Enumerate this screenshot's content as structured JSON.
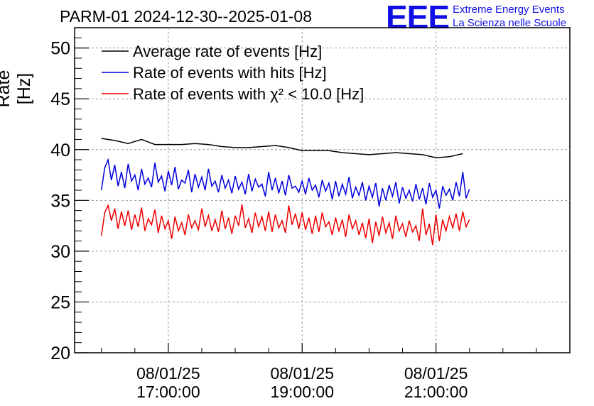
{
  "header": {
    "title": "PARM-01 2024-12-30--2025-01-08",
    "logo": "EEE",
    "logo_line1": "Extreme Energy Events",
    "logo_line2": "La Scienza nelle Scuole"
  },
  "chart_data": {
    "type": "line",
    "title": "PARM-01 2024-12-30--2025-01-08",
    "ylabel": "Rate [Hz]",
    "ylim": [
      20,
      52
    ],
    "yticks": [
      20,
      25,
      30,
      35,
      40,
      45,
      50
    ],
    "ytick_labels": [
      "20",
      "25",
      "30",
      "35",
      "40",
      "45",
      "50"
    ],
    "xlim": [
      15.6,
      23.0
    ],
    "xticks": [
      17,
      19,
      21
    ],
    "xtick_labels": [
      {
        "date": "08/01/25",
        "time": "17:00:00"
      },
      {
        "date": "08/01/25",
        "time": "19:00:00"
      },
      {
        "date": "08/01/25",
        "time": "21:00:00"
      }
    ],
    "grid": true,
    "legend_position": "top-left",
    "colors": {
      "average": "#000000",
      "hits": "#0000dd",
      "chi2": "#ee0000"
    },
    "series": [
      {
        "name": "Average rate of events [Hz]",
        "color": "#000000",
        "x": [
          16.0,
          16.2,
          16.4,
          16.6,
          16.8,
          17.0,
          17.2,
          17.4,
          17.6,
          17.8,
          18.0,
          18.2,
          18.4,
          18.6,
          18.8,
          19.0,
          19.2,
          19.4,
          19.6,
          19.8,
          20.0,
          20.2,
          20.4,
          20.6,
          20.8,
          21.0,
          21.2,
          21.4
        ],
        "values": [
          41.1,
          40.9,
          40.6,
          41.0,
          40.5,
          40.5,
          40.5,
          40.6,
          40.5,
          40.3,
          40.2,
          40.2,
          40.3,
          40.4,
          40.2,
          39.9,
          39.9,
          39.9,
          39.7,
          39.6,
          39.5,
          39.6,
          39.7,
          39.6,
          39.5,
          39.2,
          39.3,
          39.6
        ]
      },
      {
        "name": "Rate of events with hits [Hz]",
        "color": "#0000dd",
        "x": [
          16.0,
          16.05,
          16.1,
          16.15,
          16.2,
          16.25,
          16.3,
          16.35,
          16.4,
          16.45,
          16.5,
          16.55,
          16.6,
          16.65,
          16.7,
          16.75,
          16.8,
          16.85,
          16.9,
          16.95,
          17.0,
          17.05,
          17.1,
          17.15,
          17.2,
          17.25,
          17.3,
          17.35,
          17.4,
          17.45,
          17.5,
          17.55,
          17.6,
          17.65,
          17.7,
          17.75,
          17.8,
          17.85,
          17.9,
          17.95,
          18.0,
          18.05,
          18.1,
          18.15,
          18.2,
          18.25,
          18.3,
          18.35,
          18.4,
          18.45,
          18.5,
          18.55,
          18.6,
          18.65,
          18.7,
          18.75,
          18.8,
          18.85,
          18.9,
          18.95,
          19.0,
          19.05,
          19.1,
          19.15,
          19.2,
          19.25,
          19.3,
          19.35,
          19.4,
          19.45,
          19.5,
          19.55,
          19.6,
          19.65,
          19.7,
          19.75,
          19.8,
          19.85,
          19.9,
          19.95,
          20.0,
          20.05,
          20.1,
          20.15,
          20.2,
          20.25,
          20.3,
          20.35,
          20.4,
          20.45,
          20.5,
          20.55,
          20.6,
          20.65,
          20.7,
          20.75,
          20.8,
          20.85,
          20.9,
          20.95,
          21.0,
          21.05,
          21.1,
          21.15,
          21.2,
          21.25,
          21.3,
          21.35,
          21.4,
          21.45,
          21.5
        ],
        "values": [
          36.0,
          38.2,
          39.0,
          37.0,
          38.5,
          36.4,
          37.8,
          36.2,
          38.6,
          36.9,
          37.5,
          36.0,
          38.1,
          36.6,
          37.2,
          36.3,
          38.7,
          36.8,
          37.4,
          35.9,
          37.9,
          36.5,
          38.3,
          36.1,
          37.0,
          36.7,
          38.0,
          35.8,
          37.6,
          36.3,
          37.3,
          36.0,
          38.1,
          36.4,
          36.9,
          35.8,
          37.5,
          36.2,
          37.0,
          35.7,
          37.4,
          36.1,
          36.8,
          35.6,
          37.6,
          35.9,
          37.1,
          36.3,
          36.6,
          35.4,
          37.8,
          36.0,
          37.2,
          35.7,
          36.9,
          35.5,
          37.5,
          36.2,
          36.4,
          35.8,
          36.9,
          35.6,
          37.2,
          36.0,
          36.5,
          35.3,
          37.0,
          35.9,
          36.7,
          35.1,
          36.9,
          35.4,
          36.6,
          35.6,
          37.3,
          35.2,
          36.3,
          35.5,
          36.8,
          35.0,
          36.4,
          35.3,
          36.7,
          34.4,
          36.2,
          35.0,
          36.5,
          35.4,
          36.8,
          34.7,
          36.3,
          35.2,
          36.0,
          34.9,
          36.6,
          35.1,
          36.2,
          34.6,
          36.7,
          35.3,
          36.0,
          34.2,
          36.4,
          35.5,
          36.1,
          35.0,
          36.8,
          35.4,
          37.8,
          35.2,
          36.1
        ]
      },
      {
        "name": "Rate of events with χ² < 10.0 [Hz]",
        "color": "#ee0000",
        "x": [
          16.0,
          16.05,
          16.1,
          16.15,
          16.2,
          16.25,
          16.3,
          16.35,
          16.4,
          16.45,
          16.5,
          16.55,
          16.6,
          16.65,
          16.7,
          16.75,
          16.8,
          16.85,
          16.9,
          16.95,
          17.0,
          17.05,
          17.1,
          17.15,
          17.2,
          17.25,
          17.3,
          17.35,
          17.4,
          17.45,
          17.5,
          17.55,
          17.6,
          17.65,
          17.7,
          17.75,
          17.8,
          17.85,
          17.9,
          17.95,
          18.0,
          18.05,
          18.1,
          18.15,
          18.2,
          18.25,
          18.3,
          18.35,
          18.4,
          18.45,
          18.5,
          18.55,
          18.6,
          18.65,
          18.7,
          18.75,
          18.8,
          18.85,
          18.9,
          18.95,
          19.0,
          19.05,
          19.1,
          19.15,
          19.2,
          19.25,
          19.3,
          19.35,
          19.4,
          19.45,
          19.5,
          19.55,
          19.6,
          19.65,
          19.7,
          19.75,
          19.8,
          19.85,
          19.9,
          19.95,
          20.0,
          20.05,
          20.1,
          20.15,
          20.2,
          20.25,
          20.3,
          20.35,
          20.4,
          20.45,
          20.5,
          20.55,
          20.6,
          20.65,
          20.7,
          20.75,
          20.8,
          20.85,
          20.9,
          20.95,
          21.0,
          21.05,
          21.1,
          21.15,
          21.2,
          21.25,
          21.3,
          21.35,
          21.4,
          21.45,
          21.5
        ],
        "values": [
          31.5,
          33.8,
          34.5,
          33.0,
          34.2,
          32.2,
          33.9,
          32.5,
          34.0,
          32.1,
          33.6,
          32.4,
          34.3,
          32.0,
          33.2,
          32.6,
          34.1,
          31.8,
          33.5,
          32.2,
          33.0,
          31.2,
          33.4,
          32.0,
          32.8,
          31.6,
          33.6,
          32.3,
          33.0,
          32.1,
          34.2,
          32.4,
          33.5,
          32.0,
          33.1,
          31.9,
          34.0,
          32.2,
          33.3,
          31.7,
          33.5,
          32.5,
          34.6,
          32.3,
          33.2,
          31.8,
          33.8,
          32.4,
          33.4,
          32.0,
          33.9,
          31.9,
          33.6,
          32.3,
          33.0,
          31.8,
          34.5,
          32.6,
          33.7,
          32.2,
          33.8,
          32.1,
          33.3,
          31.7,
          33.5,
          31.9,
          33.8,
          32.4,
          32.9,
          31.6,
          33.3,
          32.0,
          33.1,
          31.4,
          33.6,
          32.2,
          33.0,
          31.6,
          32.8,
          31.3,
          33.2,
          30.8,
          32.9,
          31.5,
          33.4,
          31.8,
          32.8,
          31.2,
          33.5,
          32.0,
          32.7,
          31.4,
          33.0,
          31.9,
          32.5,
          31.0,
          34.2,
          31.6,
          32.7,
          30.6,
          33.6,
          31.0,
          33.1,
          32.0,
          33.4,
          32.3,
          33.7,
          32.0,
          33.9,
          32.4,
          33.1
        ]
      }
    ]
  }
}
